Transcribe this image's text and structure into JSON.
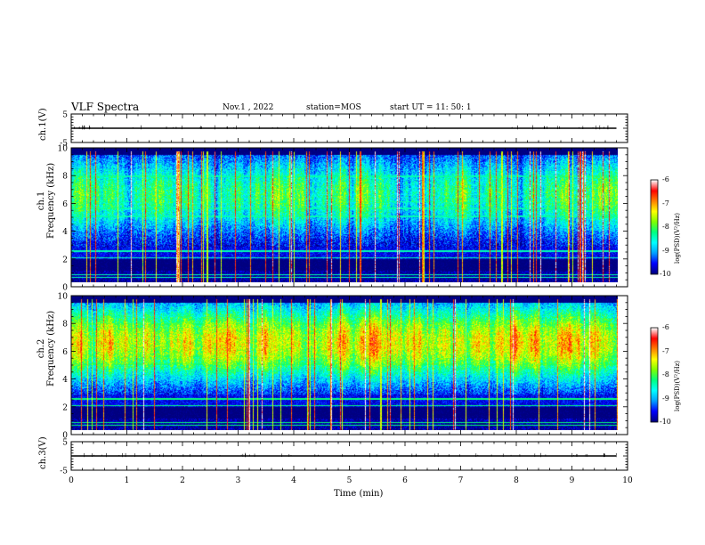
{
  "header": {
    "title": "VLF Spectra",
    "date": "Nov.1 , 2022",
    "station": "station=MOS",
    "start_ut": "start UT = 11: 50: 1"
  },
  "chart_data": [
    {
      "type": "line",
      "panel": "ch.1(V)",
      "ylabel": "ch.1(V)",
      "ylim": [
        -5,
        5
      ],
      "yticks": [
        "5",
        "-5"
      ],
      "x": [
        0,
        10
      ],
      "values": [
        0,
        0
      ],
      "xlim": [
        0,
        10
      ]
    },
    {
      "type": "heatmap",
      "panel": "ch.1 spectrogram",
      "ylabel": "ch.1\nFrequency (kHz)",
      "ylabel_lines": [
        "ch.1",
        "Frequency (kHz)"
      ],
      "xlim": [
        0,
        9.8
      ],
      "ylim": [
        0,
        10
      ],
      "yticks": [
        "0",
        "2",
        "4",
        "6",
        "8",
        "10"
      ],
      "colorbar": {
        "min": -10,
        "max": -6,
        "ticks": [
          "-6",
          "-7",
          "-8",
          "-9",
          "-10"
        ],
        "label": "log(PSD)(V²/Hz)"
      },
      "band_center_khz": 6.5,
      "band_level": -8.3
    },
    {
      "type": "heatmap",
      "panel": "ch.2 spectrogram",
      "ylabel": "ch.2\nFrequency (kHz)",
      "ylabel_lines": [
        "ch.2",
        "Frequency (kHz)"
      ],
      "xlim": [
        0,
        9.8
      ],
      "ylim": [
        0,
        10
      ],
      "yticks": [
        "0",
        "2",
        "4",
        "6",
        "8",
        "10"
      ],
      "colorbar": {
        "min": -10,
        "max": -6,
        "ticks": [
          "-6",
          "-7",
          "-8",
          "-9",
          "-10"
        ],
        "label": "log(PSD)(V²/Hz)"
      },
      "band_center_khz": 6.5,
      "band_level": -7.4
    },
    {
      "type": "line",
      "panel": "ch.3(V)",
      "ylabel": "ch.3(V)",
      "ylim": [
        -5,
        5
      ],
      "yticks": [
        "5",
        "-5"
      ],
      "x": [
        0,
        10
      ],
      "values": [
        0,
        0
      ],
      "xlim": [
        0,
        10
      ]
    }
  ],
  "xaxis": {
    "label": "Time (min)",
    "ticks": [
      "0",
      "1",
      "2",
      "3",
      "4",
      "5",
      "6",
      "7",
      "8",
      "9",
      "10"
    ],
    "range": [
      0,
      10
    ]
  },
  "colormap": [
    "#000080",
    "#0000ff",
    "#00a0ff",
    "#00ffff",
    "#00ff80",
    "#80ff00",
    "#ffff00",
    "#ff8000",
    "#ff0000",
    "#ffffff"
  ]
}
